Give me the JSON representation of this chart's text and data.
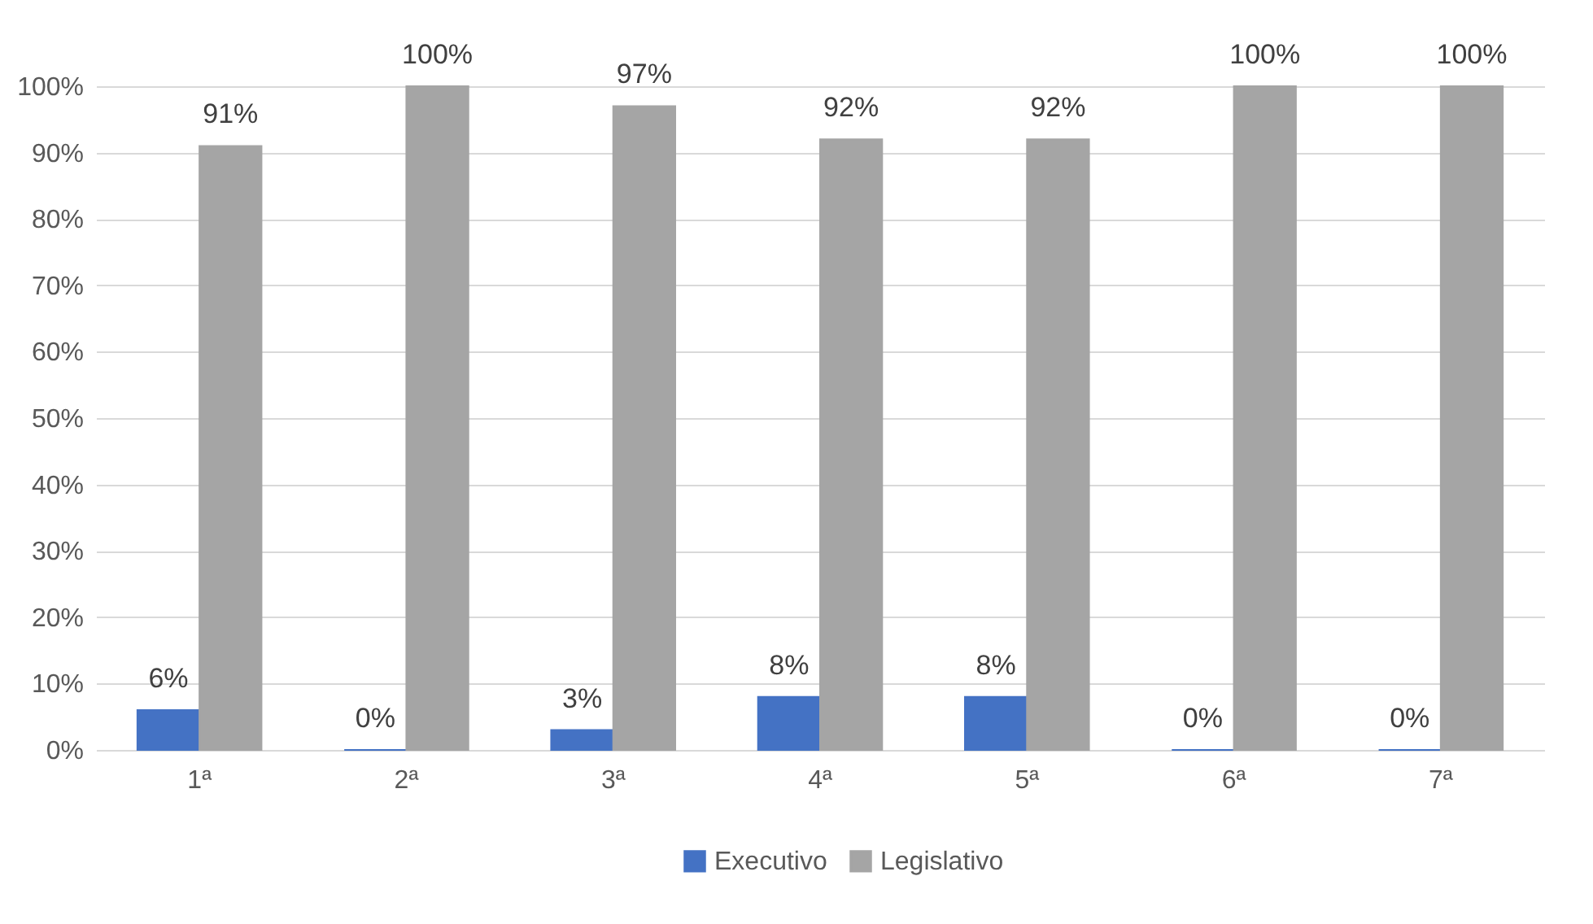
{
  "chart_data": {
    "type": "bar",
    "categories": [
      "1ª",
      "2ª",
      "3ª",
      "4ª",
      "5ª",
      "6ª",
      "7ª"
    ],
    "series": [
      {
        "name": "Executivo",
        "color": "#4472c4",
        "values": [
          6,
          0,
          3,
          8,
          8,
          0,
          0
        ],
        "value_labels": [
          "6%",
          "0%",
          "3%",
          "8%",
          "8%",
          "0%",
          "0%"
        ]
      },
      {
        "name": "Legislativo",
        "color": "#a5a5a5",
        "values": [
          91,
          100,
          97,
          92,
          92,
          100,
          100
        ],
        "value_labels": [
          "91%",
          "100%",
          "97%",
          "92%",
          "92%",
          "100%",
          "100%"
        ]
      }
    ],
    "ylim": [
      0,
      100
    ],
    "yticks": [
      {
        "value": 0,
        "label": "0%"
      },
      {
        "value": 10,
        "label": "10%"
      },
      {
        "value": 20,
        "label": "20%"
      },
      {
        "value": 30,
        "label": "30%"
      },
      {
        "value": 40,
        "label": "40%"
      },
      {
        "value": 50,
        "label": "50%"
      },
      {
        "value": 60,
        "label": "60%"
      },
      {
        "value": 70,
        "label": "70%"
      },
      {
        "value": 80,
        "label": "80%"
      },
      {
        "value": 90,
        "label": "90%"
      },
      {
        "value": 100,
        "label": "100%"
      }
    ],
    "grid": "y",
    "legend": "bottom"
  }
}
